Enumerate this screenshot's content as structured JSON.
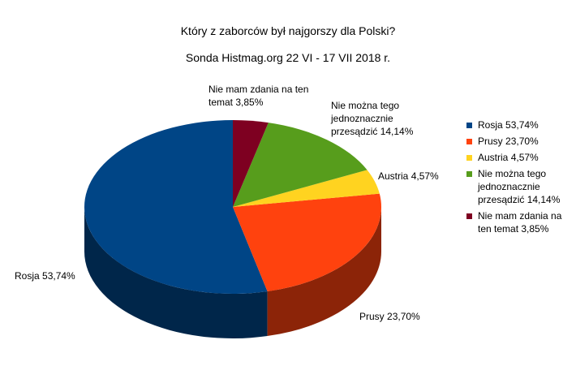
{
  "chart_data": {
    "type": "pie",
    "title": "Który z zaborców był najgorszy dla Polski?",
    "subtitle": "Sonda Histmag.org 22 VI - 17 VII 2018 r.",
    "categories": [
      "Rosja",
      "Prusy",
      "Austria",
      "Nie można tego jednoznacznie przesądzić",
      "Nie mam zdania na ten temat"
    ],
    "values": [
      53.74,
      23.7,
      4.57,
      14.14,
      3.85
    ],
    "value_labels": [
      "53,74%",
      "23,70%",
      "4,57%",
      "14,14%",
      "3,85%"
    ],
    "colors": [
      "#004586",
      "#ff420e",
      "#ffd320",
      "#579d1c",
      "#7e0021"
    ]
  }
}
